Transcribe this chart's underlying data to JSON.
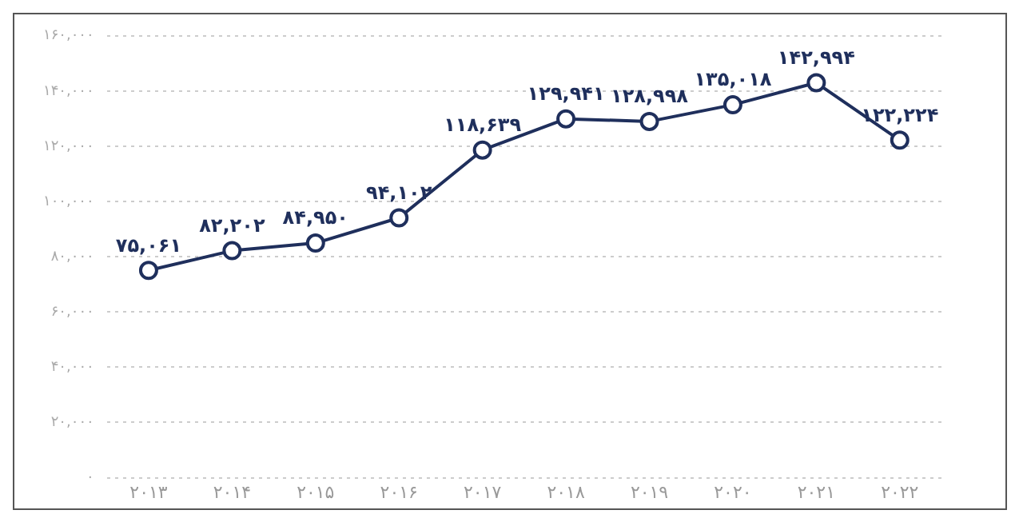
{
  "chart_data": {
    "type": "line",
    "categories": [
      "۲۰۱۳",
      "۲۰۱۴",
      "۲۰۱۵",
      "۲۰۱۶",
      "۲۰۱۷",
      "۲۰۱۸",
      "۲۰۱۹",
      "۲۰۲۰",
      "۲۰۲۱",
      "۲۰۲۲"
    ],
    "series": [
      {
        "color": "#1f2f5c",
        "values": [
          75061,
          82202,
          84950,
          94102,
          118639,
          129941,
          128998,
          135018,
          142994,
          122224
        ],
        "value_labels": [
          "۷۵,۰۶۱",
          "۸۲,۲۰۲",
          "۸۴,۹۵۰",
          "۹۴,۱۰۲",
          "۱۱۸,۶۳۹",
          "۱۲۹,۹۴۱",
          "۱۲۸,۹۹۸",
          "۱۳۵,۰۱۸",
          "۱۴۲,۹۹۴",
          "۱۲۲,۲۲۴"
        ]
      }
    ],
    "ylim": [
      0,
      160000
    ],
    "yticks": [
      {
        "value": 0,
        "label": "۰"
      },
      {
        "value": 20000,
        "label": "۲۰,۰۰۰"
      },
      {
        "value": 40000,
        "label": "۴۰,۰۰۰"
      },
      {
        "value": 60000,
        "label": "۶۰,۰۰۰"
      },
      {
        "value": 80000,
        "label": "۸۰,۰۰۰"
      },
      {
        "value": 100000,
        "label": "۱۰۰,۰۰۰"
      },
      {
        "value": 120000,
        "label": "۱۲۰,۰۰۰"
      },
      {
        "value": 140000,
        "label": "۱۴۰,۰۰۰"
      },
      {
        "value": 160000,
        "label": "۱۶۰,۰۰۰"
      }
    ],
    "grid": "y",
    "marker": "circle",
    "line_style": "solid",
    "legend": false
  }
}
